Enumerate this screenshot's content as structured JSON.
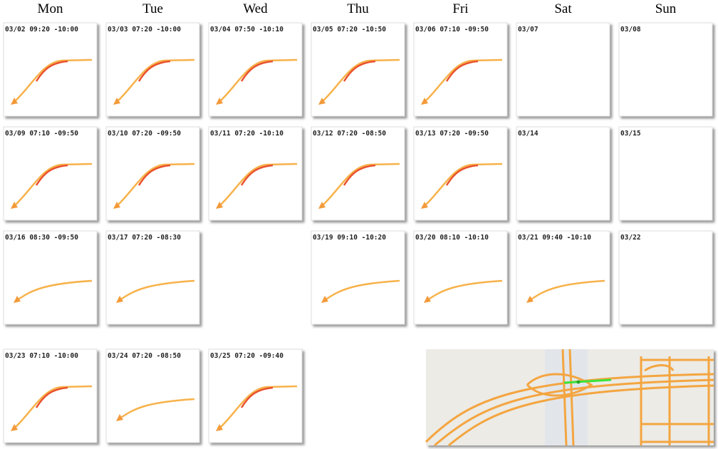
{
  "days": [
    "Mon",
    "Tue",
    "Wed",
    "Thu",
    "Fri",
    "Sat",
    "Sun"
  ],
  "weeks": [
    [
      "03/02 09:20 -10:00",
      "03/03 07:20 -10:00",
      "03/04 07:50 -10:10",
      "03/05 07:20 -10:50",
      "03/06 07:10 -09:50",
      "03/07",
      "03/08"
    ],
    [
      "03/09 07:10 -09:50",
      "03/10 07:20 -09:50",
      "03/11 07:20 -10:10",
      "03/12 07:20 -08:50",
      "03/13 07:20 -09:50",
      "03/14",
      "03/15"
    ],
    [
      "03/16 08:30 -09:50",
      "03/17 07:20 -08:30",
      null,
      "03/19 09:10 -10:20",
      "03/20 08:10 -10:10",
      "03/21 09:40 -10:10",
      "03/22"
    ],
    [
      "03/23 07:10 -10:00",
      "03/24 07:20 -08:50",
      "03/25 07:20 -09:40"
    ]
  ]
}
